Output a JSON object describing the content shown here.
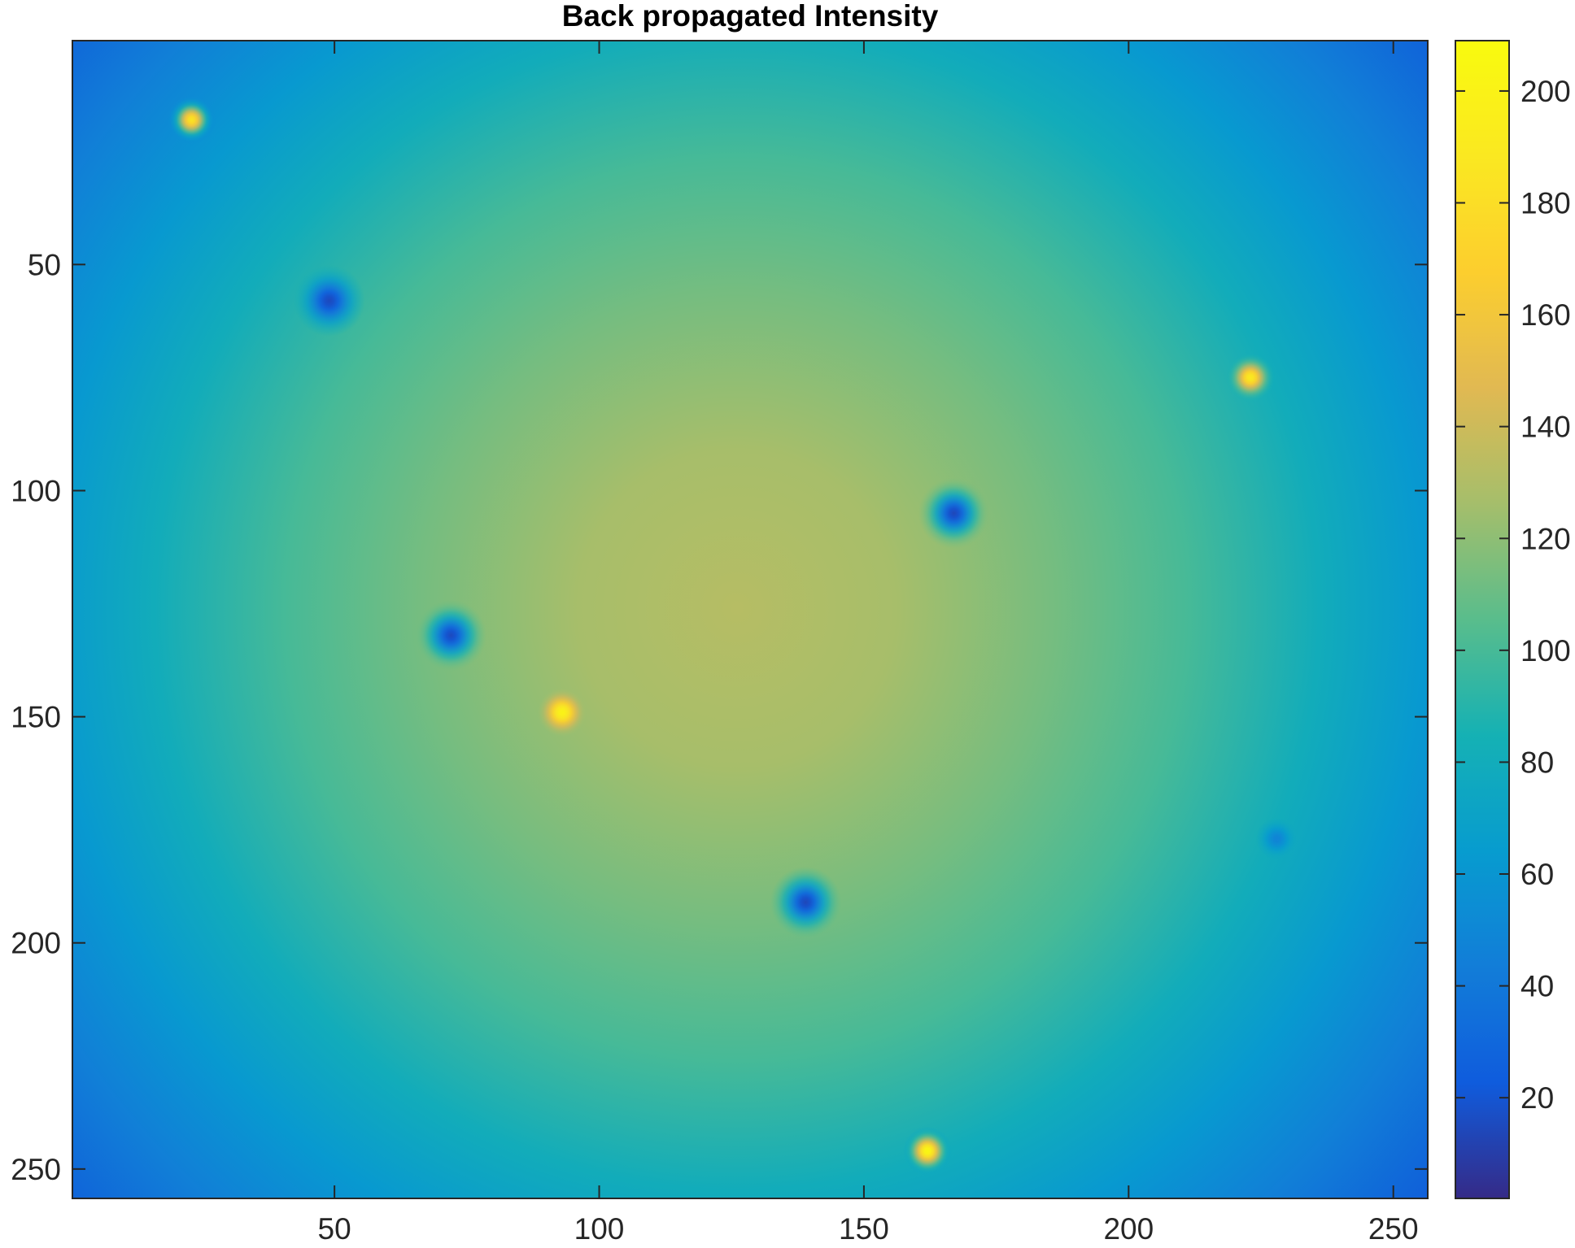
{
  "chart_data": {
    "type": "heatmap",
    "title": "Back propagated Intensity",
    "xlabel": "",
    "ylabel": "",
    "xlim": [
      0.5,
      256.5
    ],
    "ylim": [
      0.5,
      256.5
    ],
    "y_direction": "reversed",
    "x_ticks": [
      50,
      100,
      150,
      200,
      250
    ],
    "y_ticks": [
      50,
      100,
      150,
      200,
      250
    ],
    "colormap": "parula",
    "colorbar": {
      "location": "right",
      "limits": [
        2,
        209
      ],
      "ticks": [
        20,
        40,
        60,
        80,
        100,
        120,
        140,
        160,
        180,
        200
      ]
    },
    "background_field": {
      "shape": "radial",
      "center": [
        126,
        126
      ],
      "samples": [
        {
          "radius": 0,
          "value": 132
        },
        {
          "radius": 30,
          "value": 127
        },
        {
          "radius": 60,
          "value": 113
        },
        {
          "radius": 85,
          "value": 100
        },
        {
          "radius": 110,
          "value": 80
        },
        {
          "radius": 130,
          "value": 62
        },
        {
          "radius": 150,
          "value": 45
        },
        {
          "radius": 175,
          "value": 22
        }
      ]
    },
    "bright_spots": [
      {
        "x": 23,
        "y": 18,
        "value": 185
      },
      {
        "x": 93,
        "y": 149,
        "value": 200
      },
      {
        "x": 223,
        "y": 75,
        "value": 190
      },
      {
        "x": 162,
        "y": 246,
        "value": 205
      }
    ],
    "dark_spots": [
      {
        "x": 49,
        "y": 58,
        "value": 15
      },
      {
        "x": 72,
        "y": 132,
        "value": 15
      },
      {
        "x": 167,
        "y": 105,
        "value": 14
      },
      {
        "x": 139,
        "y": 191,
        "value": 14
      },
      {
        "x": 228,
        "y": 177,
        "value": 48
      }
    ],
    "grid": false,
    "box": true
  }
}
